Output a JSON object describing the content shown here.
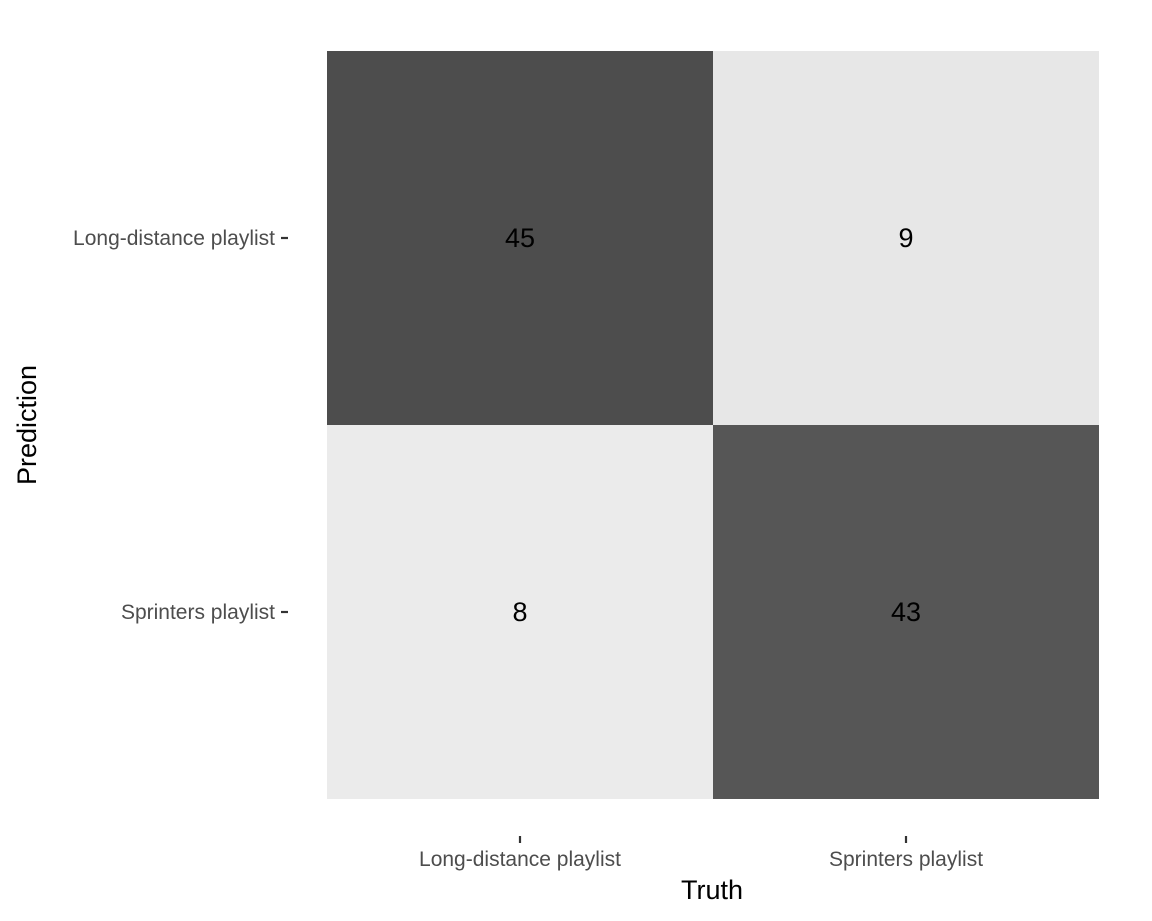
{
  "chart_data": {
    "type": "heatmap",
    "xlabel": "Truth",
    "ylabel": "Prediction",
    "x_categories": [
      "Long-distance playlist",
      "Sprinters playlist"
    ],
    "y_categories": [
      "Long-distance playlist",
      "Sprinters playlist"
    ],
    "cells": [
      {
        "prediction": "Long-distance playlist",
        "truth": "Long-distance playlist",
        "value": 45
      },
      {
        "prediction": "Long-distance playlist",
        "truth": "Sprinters playlist",
        "value": 9
      },
      {
        "prediction": "Sprinters playlist",
        "truth": "Long-distance playlist",
        "value": 8
      },
      {
        "prediction": "Sprinters playlist",
        "truth": "Sprinters playlist",
        "value": 43
      }
    ],
    "color_scale": {
      "low": "#ebebeb",
      "high": "#4d4d4d"
    },
    "grid": false,
    "legend": "none"
  }
}
